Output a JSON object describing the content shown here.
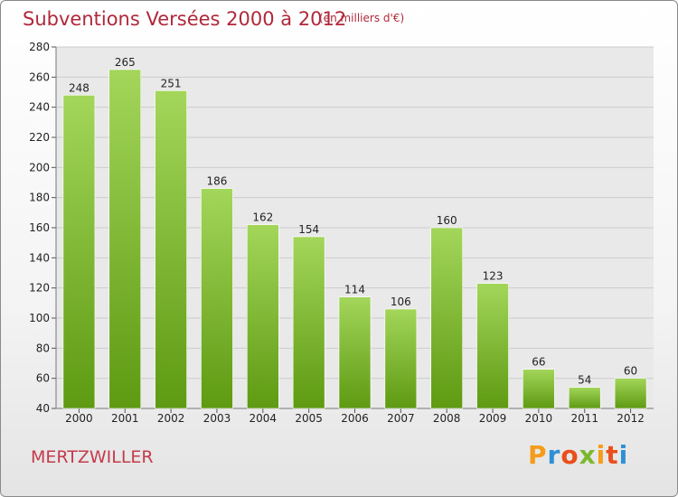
{
  "header": {
    "title": "Subventions Versées 2000 à 2012",
    "unit": "(en milliers d'€)"
  },
  "footer": {
    "commune": "MERTZWILLER",
    "brand": "Proxiti",
    "brand_colors": [
      "#f59c1a",
      "#2e8fd6",
      "#e94e1b",
      "#7cb82f",
      "#f59c1a",
      "#e94e1b",
      "#2e8fd6"
    ]
  },
  "colors": {
    "title": "#b0283a",
    "bar_top": "#a3d65a",
    "bar_bottom": "#5e9a12",
    "grid": "#cccccc",
    "axis_text": "#222222"
  },
  "chart_data": {
    "type": "bar",
    "categories": [
      "2000",
      "2001",
      "2002",
      "2003",
      "2004",
      "2005",
      "2006",
      "2007",
      "2008",
      "2009",
      "2010",
      "2011",
      "2012"
    ],
    "values": [
      248,
      265,
      251,
      186,
      162,
      154,
      114,
      106,
      160,
      123,
      66,
      54,
      60
    ],
    "data_labels": [
      "248",
      "265",
      "251",
      "186",
      "162",
      "154",
      "114",
      "106",
      "160",
      "123",
      "66",
      "54",
      "60"
    ],
    "title": "Subventions Versées 2000 à 2012",
    "xlabel": "",
    "ylabel": "",
    "ylim": [
      40,
      280
    ],
    "yticks": [
      40,
      60,
      80,
      100,
      120,
      140,
      160,
      180,
      200,
      220,
      240,
      260,
      280
    ],
    "ytick_labels": [
      "40",
      "60",
      "80",
      "100",
      "120",
      "140",
      "160",
      "180",
      "200",
      "220",
      "240",
      "260",
      "280"
    ],
    "grid": true,
    "legend": "none"
  }
}
